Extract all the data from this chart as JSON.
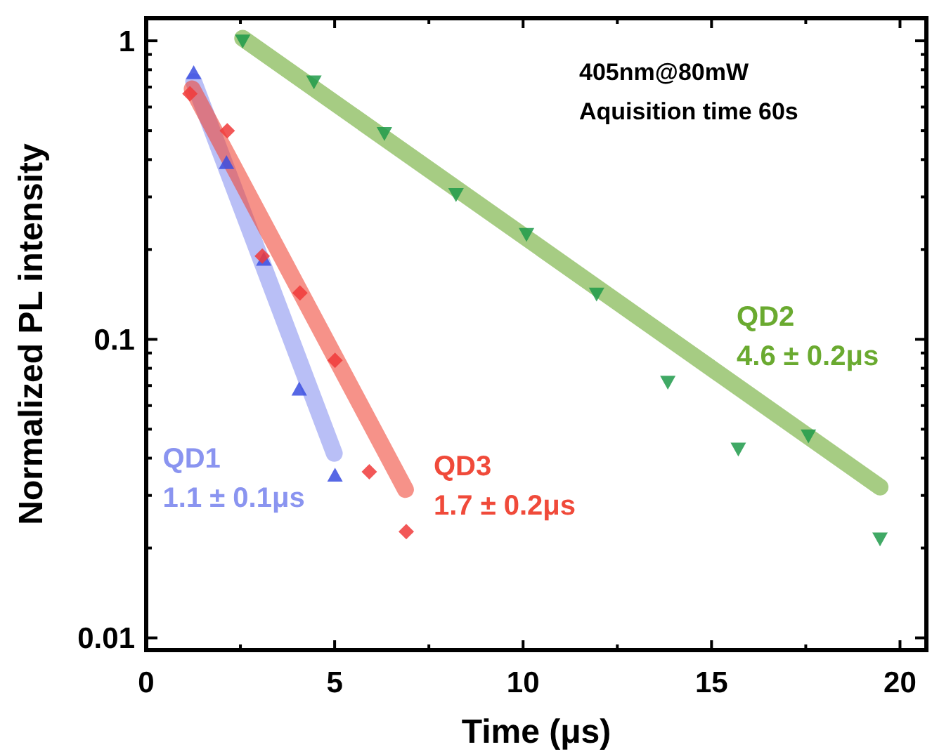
{
  "chart_data": {
    "type": "scatter",
    "xlabel": "Time (μs)",
    "ylabel": "Normalized PL intensity",
    "log": "y",
    "grid": false,
    "xlim": [
      0,
      20.7
    ],
    "ylim": [
      0.0091,
      1.19
    ],
    "xticks": [
      0,
      {
        "value": 2.5,
        "label": null
      },
      5,
      {
        "value": 7.5,
        "label": null
      },
      10,
      {
        "value": 12.5,
        "label": null
      },
      15,
      {
        "value": 17.5,
        "label": null
      },
      20
    ],
    "yticks": [
      {
        "value": 0.01,
        "label": "0.01"
      },
      {
        "value": 0.02,
        "label": null
      },
      {
        "value": 0.03,
        "label": null
      },
      {
        "value": 0.04,
        "label": null
      },
      {
        "value": 0.05,
        "label": null
      },
      {
        "value": 0.06,
        "label": null
      },
      {
        "value": 0.07,
        "label": null
      },
      {
        "value": 0.08,
        "label": null
      },
      {
        "value": 0.09,
        "label": null
      },
      {
        "value": 0.1,
        "label": "0.1"
      },
      {
        "value": 0.2,
        "label": null
      },
      {
        "value": 0.3,
        "label": null
      },
      {
        "value": 0.4,
        "label": null
      },
      {
        "value": 0.5,
        "label": null
      },
      {
        "value": 0.6,
        "label": null
      },
      {
        "value": 0.7,
        "label": null
      },
      {
        "value": 0.8,
        "label": null
      },
      {
        "value": 0.9,
        "label": null
      },
      1
    ],
    "series": [
      {
        "type": "line",
        "name": "QD1",
        "color": "#8a94f0",
        "x": [
          1.26,
          4.99
        ],
        "values": [
          0.73,
          0.0415
        ]
      },
      {
        "type": "line",
        "name": "QD3",
        "color": "#f04a3a",
        "x": [
          1.22,
          6.88
        ],
        "values": [
          0.69,
          0.0314
        ]
      },
      {
        "type": "line",
        "name": "QD2",
        "color": "#6aaa30",
        "x": [
          2.56,
          19.47
        ],
        "values": [
          1.02,
          0.032
        ]
      },
      {
        "marker": "triangle",
        "color": "#3a4ee0",
        "x": [
          1.26,
          2.13,
          3.12,
          4.06,
          5.01
        ],
        "values": [
          0.78,
          0.39,
          0.185,
          0.068,
          0.035
        ]
      },
      {
        "marker": "diamond",
        "color": "#f03a3a",
        "x": [
          1.16,
          2.15,
          3.08,
          4.08,
          5.01,
          5.92,
          6.9
        ],
        "values": [
          0.665,
          0.5,
          0.19,
          0.143,
          0.085,
          0.036,
          0.0227
        ]
      },
      {
        "marker": "triangle-down",
        "color": "#1e9a4a",
        "x": [
          2.56,
          4.45,
          6.32,
          8.22,
          10.09,
          11.95,
          13.84,
          15.71,
          17.57,
          19.47
        ],
        "values": [
          1.0,
          0.73,
          0.49,
          0.306,
          0.225,
          0.142,
          0.072,
          0.043,
          0.0476,
          0.0215
        ]
      }
    ],
    "annotations": [
      "1.1 ± 0.1μs",
      "1.7 ± 0.2μs",
      "4.6 ± 0.2μs",
      "405nm@80mW",
      "Aquisition time 60s"
    ]
  }
}
